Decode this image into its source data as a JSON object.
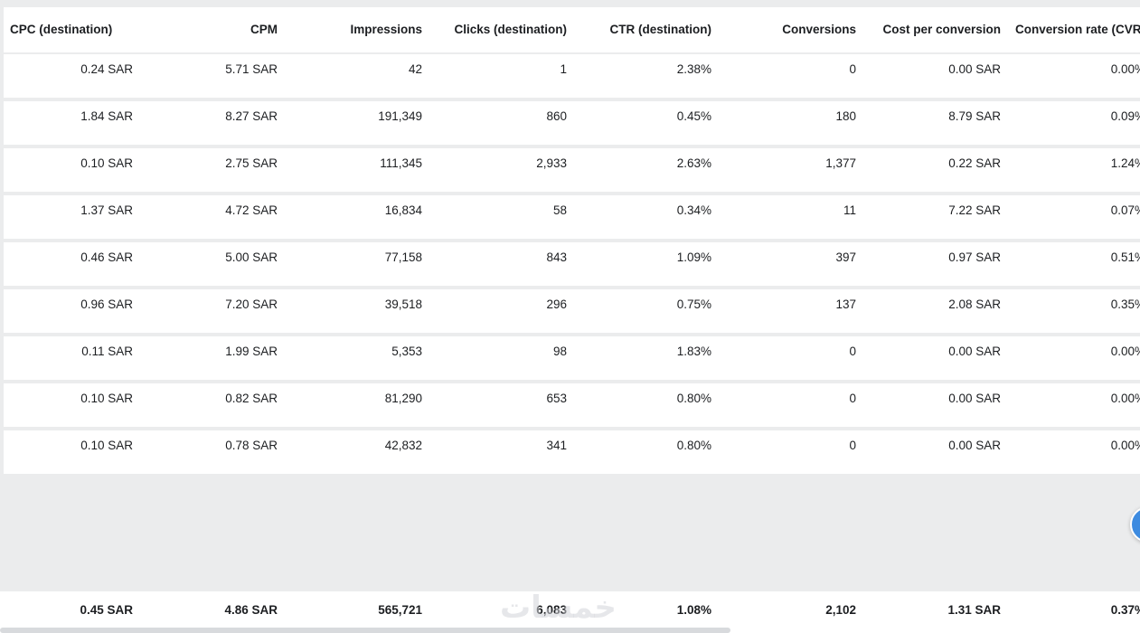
{
  "table": {
    "columns": [
      "CPC (destination)",
      "CPM",
      "Impressions",
      "Clicks (destination)",
      "CTR (destination)",
      "Conversions",
      "Cost per conversion",
      "Conversion rate (CVR)"
    ],
    "rows": [
      [
        "0.24 SAR",
        "5.71 SAR",
        "42",
        "1",
        "2.38%",
        "0",
        "0.00 SAR",
        "0.00%"
      ],
      [
        "1.84 SAR",
        "8.27 SAR",
        "191,349",
        "860",
        "0.45%",
        "180",
        "8.79 SAR",
        "0.09%"
      ],
      [
        "0.10 SAR",
        "2.75 SAR",
        "111,345",
        "2,933",
        "2.63%",
        "1,377",
        "0.22 SAR",
        "1.24%"
      ],
      [
        "1.37 SAR",
        "4.72 SAR",
        "16,834",
        "58",
        "0.34%",
        "11",
        "7.22 SAR",
        "0.07%"
      ],
      [
        "0.46 SAR",
        "5.00 SAR",
        "77,158",
        "843",
        "1.09%",
        "397",
        "0.97 SAR",
        "0.51%"
      ],
      [
        "0.96 SAR",
        "7.20 SAR",
        "39,518",
        "296",
        "0.75%",
        "137",
        "2.08 SAR",
        "0.35%"
      ],
      [
        "0.11 SAR",
        "1.99 SAR",
        "5,353",
        "98",
        "1.83%",
        "0",
        "0.00 SAR",
        "0.00%"
      ],
      [
        "0.10 SAR",
        "0.82 SAR",
        "81,290",
        "653",
        "0.80%",
        "0",
        "0.00 SAR",
        "0.00%"
      ],
      [
        "0.10 SAR",
        "0.78 SAR",
        "42,832",
        "341",
        "0.80%",
        "0",
        "0.00 SAR",
        "0.00%"
      ]
    ],
    "totals": [
      "0.45 SAR",
      "4.86 SAR",
      "565,721",
      "6,083",
      "1.08%",
      "2,102",
      "1.31 SAR",
      "0.37%"
    ]
  },
  "watermark": {
    "text": "خمسات"
  },
  "colors": {
    "row_background": "#ffffff",
    "page_background": "#ebeced",
    "text": "#1c1e21",
    "float_button": "#3d8be0"
  }
}
